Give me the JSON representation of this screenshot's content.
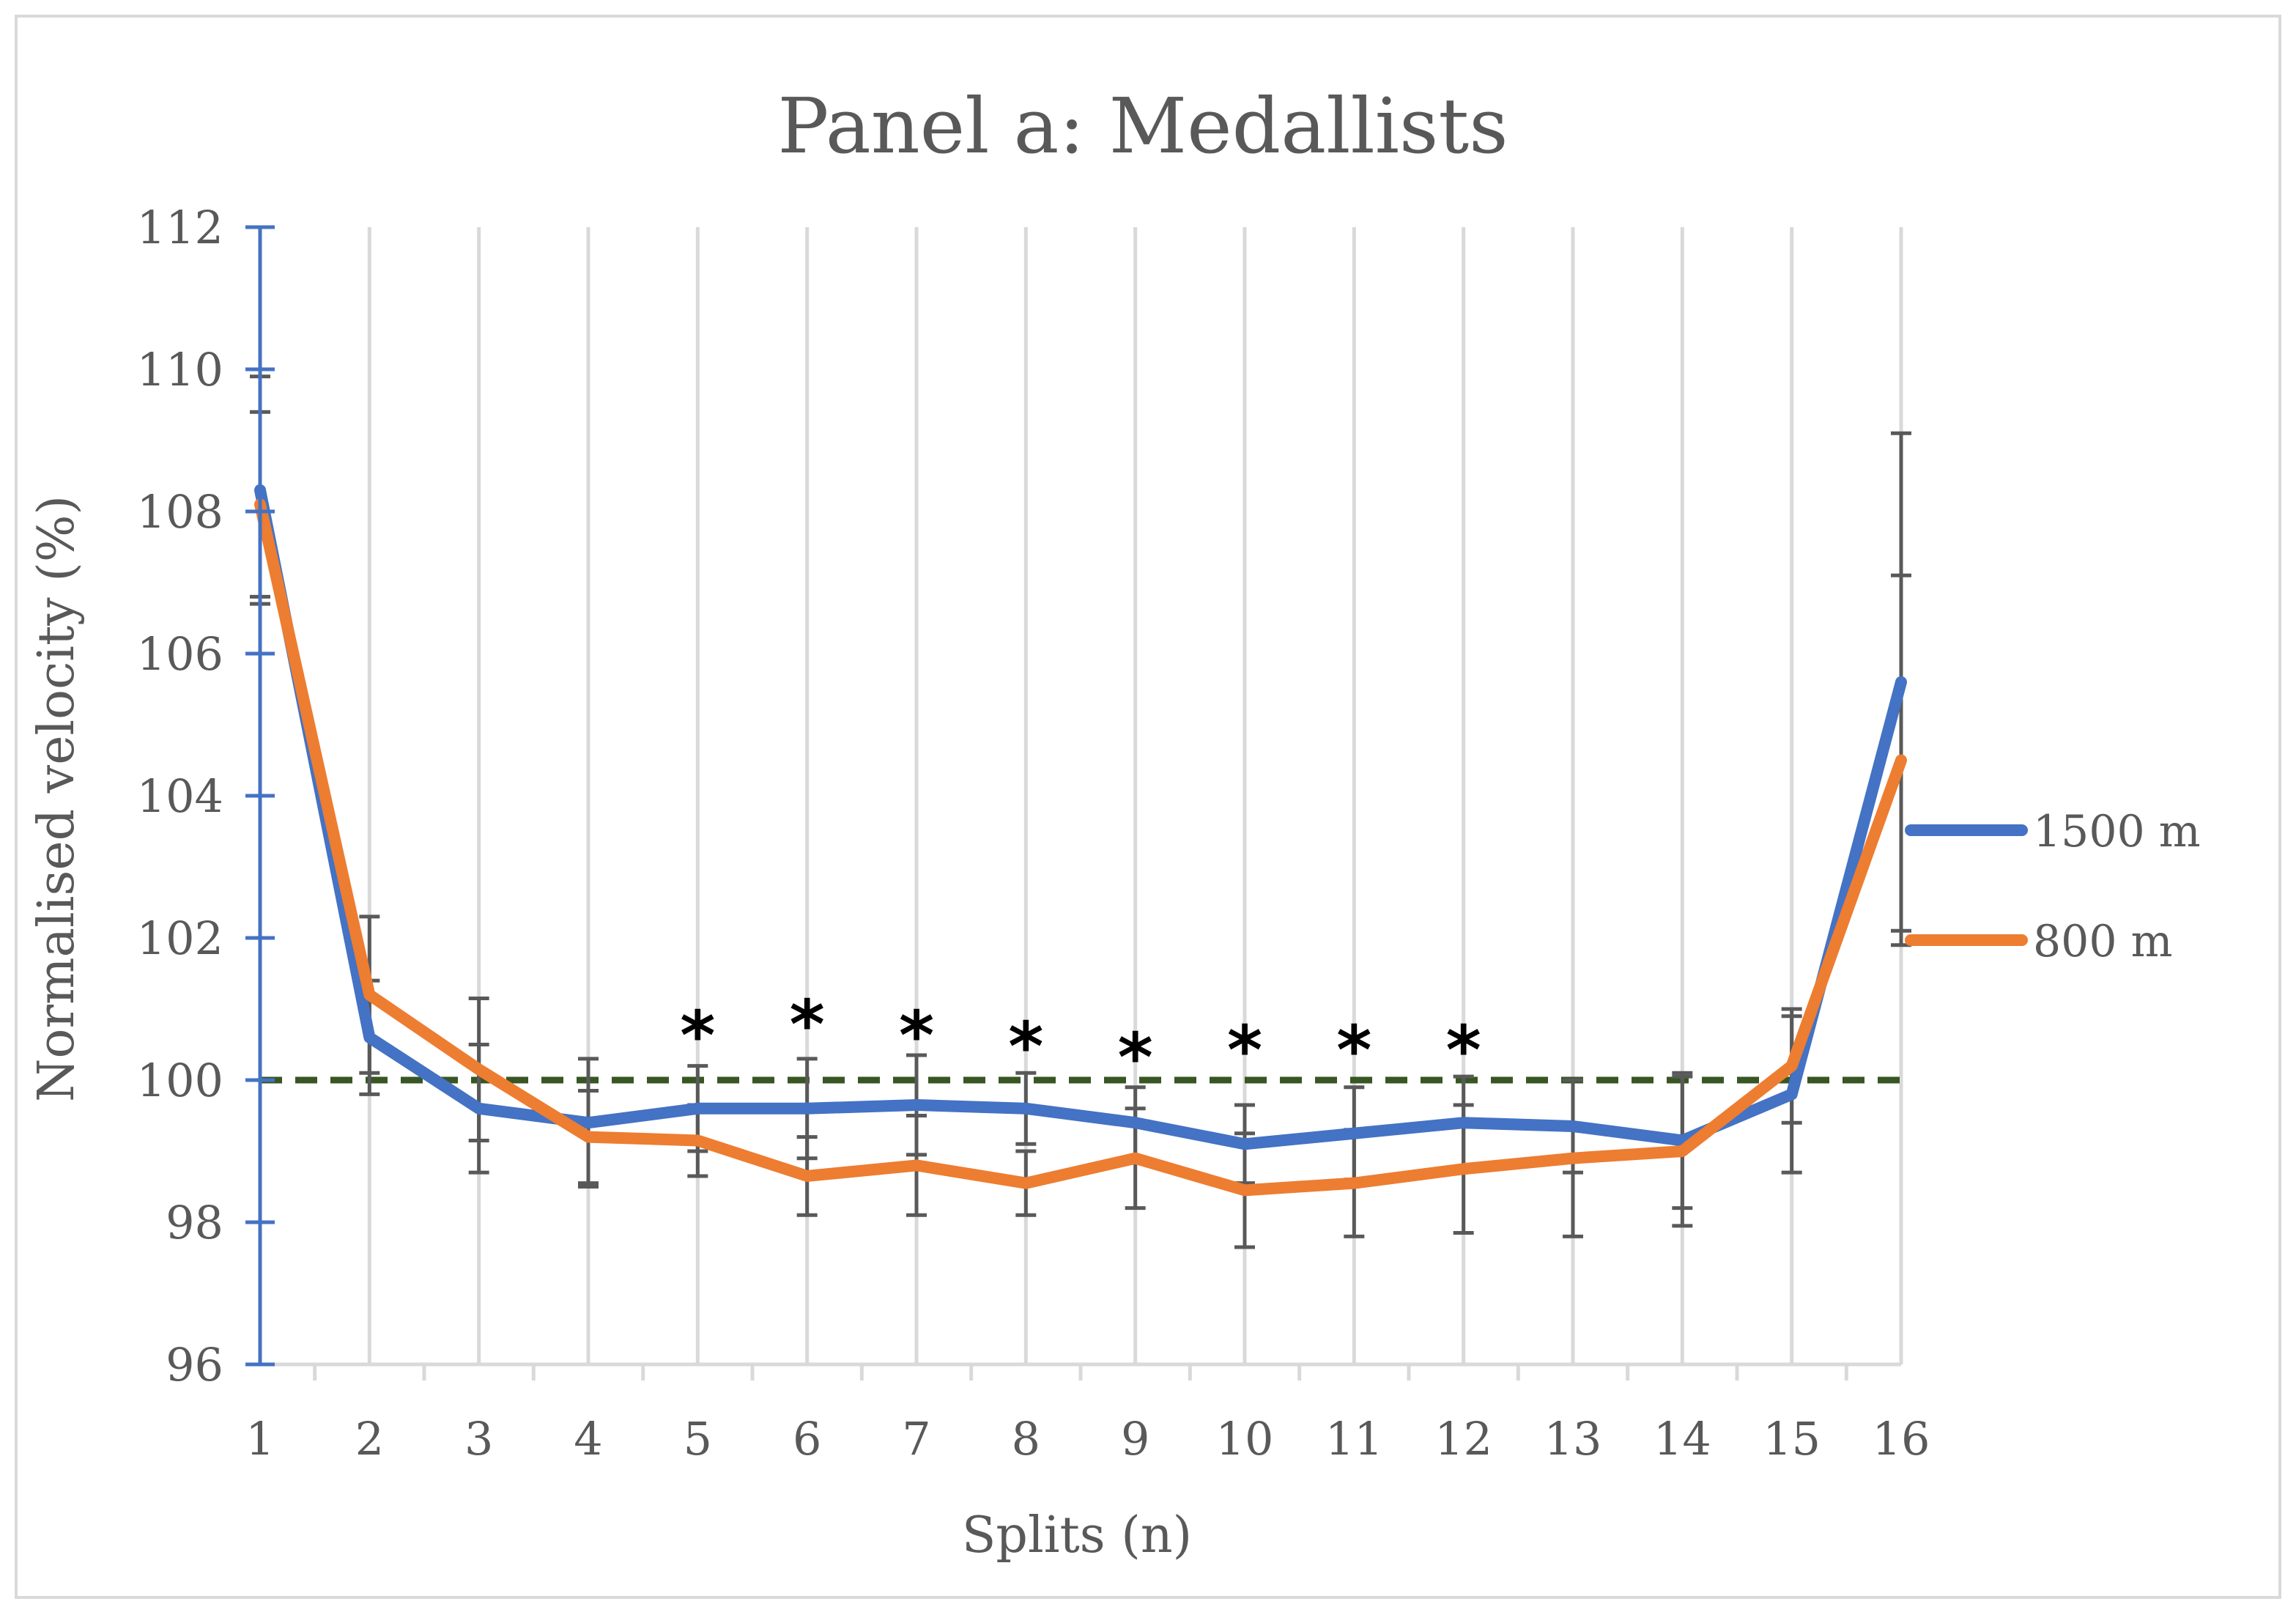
{
  "chart_data": {
    "type": "line",
    "title": "Panel a: Medallists",
    "xlabel": "Splits (n)",
    "ylabel": "Normalised velocity (%)",
    "x": [
      1,
      2,
      3,
      4,
      5,
      6,
      7,
      8,
      9,
      10,
      11,
      12,
      13,
      14,
      15,
      16
    ],
    "xticks": [
      "1",
      "2",
      "3",
      "4",
      "5",
      "6",
      "7",
      "8",
      "9",
      "10",
      "11",
      "12",
      "13",
      "14",
      "15",
      "16"
    ],
    "ylim": [
      96,
      112
    ],
    "yticks": [
      "96",
      "98",
      "100",
      "102",
      "104",
      "106",
      "108",
      "110",
      "112"
    ],
    "grid": "vertical",
    "legend_position": "right",
    "reference_line": {
      "y": 100,
      "style": "dashed",
      "color": "#375623"
    },
    "significance_marker": "*",
    "significant_splits": [
      5,
      6,
      7,
      8,
      9,
      10,
      11,
      12
    ],
    "series": [
      {
        "name": "1500 m",
        "color": "#4472C4",
        "values": [
          108.3,
          100.6,
          99.6,
          99.4,
          99.6,
          99.6,
          99.65,
          99.6,
          99.4,
          99.1,
          99.25,
          99.4,
          99.35,
          99.15,
          99.8,
          105.6
        ],
        "error": [
          1.6,
          0.8,
          0.9,
          0.9,
          0.6,
          0.7,
          0.7,
          0.5,
          0.5,
          0.55,
          0.65,
          0.65,
          0.65,
          0.95,
          1.1,
          3.5
        ]
      },
      {
        "name": "800 m",
        "color": "#ED7D31",
        "values": [
          108.1,
          101.2,
          100.15,
          99.2,
          99.15,
          98.65,
          98.8,
          98.55,
          98.9,
          98.45,
          98.55,
          98.75,
          98.9,
          99.0,
          100.2,
          104.5
        ],
        "error": [
          1.3,
          1.1,
          1.0,
          0.65,
          0.5,
          0.55,
          0.7,
          0.45,
          0.7,
          0.8,
          0.75,
          0.9,
          1.1,
          1.05,
          0.8,
          2.6
        ]
      }
    ]
  }
}
